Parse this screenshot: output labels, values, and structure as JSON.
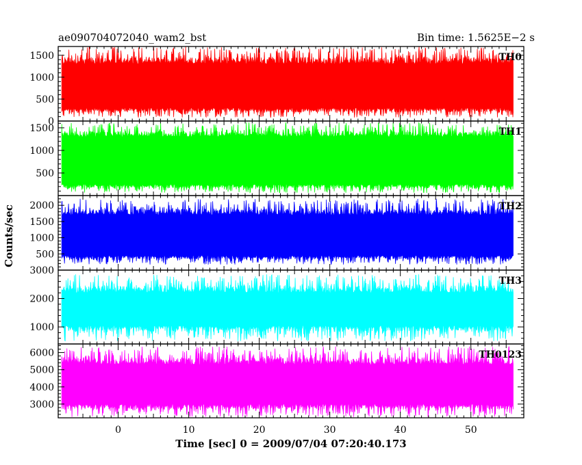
{
  "chart_data": {
    "type": "line",
    "title_left": "ae090704072040_wam2_bst",
    "title_right": "Bin time: 1.5625E−2 s",
    "xlabel": "Time [sec] 0 = 2009/07/04 07:20:40.173",
    "ylabel": "Counts/sec",
    "xlim": [
      -8.5,
      57.5
    ],
    "x_range": [
      -8,
      56
    ],
    "x_ticks": [
      0,
      10,
      20,
      30,
      40,
      50
    ],
    "series": [
      {
        "name": "TH0",
        "color": "#ff0000",
        "ylim": [
          0,
          1700
        ],
        "y_ticks": [
          0,
          500,
          1000,
          1500
        ],
        "base_low": 300,
        "base_high": 1300,
        "min": 80,
        "max": 1700,
        "mean": 750
      },
      {
        "name": "TH1",
        "color": "#00ff00",
        "ylim": [
          0,
          1650
        ],
        "y_ticks": [
          500,
          1000,
          1500
        ],
        "base_low": 250,
        "base_high": 1300,
        "min": 60,
        "max": 1620,
        "mean": 760
      },
      {
        "name": "TH2",
        "color": "#0000ff",
        "ylim": [
          0,
          2300
        ],
        "y_ticks": [
          500,
          1000,
          1500,
          2000
        ],
        "base_low": 450,
        "base_high": 1700,
        "min": 170,
        "max": 2200,
        "mean": 1050
      },
      {
        "name": "TH3",
        "color": "#00ffff",
        "ylim": [
          400,
          3000
        ],
        "y_ticks": [
          1000,
          2000,
          3000
        ],
        "base_low": 1050,
        "base_high": 2200,
        "min": 500,
        "max": 2850,
        "mean": 1650
      },
      {
        "name": "TH0123",
        "color": "#ff00ff",
        "ylim": [
          2200,
          6500
        ],
        "y_ticks": [
          3000,
          4000,
          5000,
          6000
        ],
        "base_low": 3000,
        "base_high": 5300,
        "min": 2250,
        "max": 6350,
        "mean": 4100
      }
    ]
  }
}
